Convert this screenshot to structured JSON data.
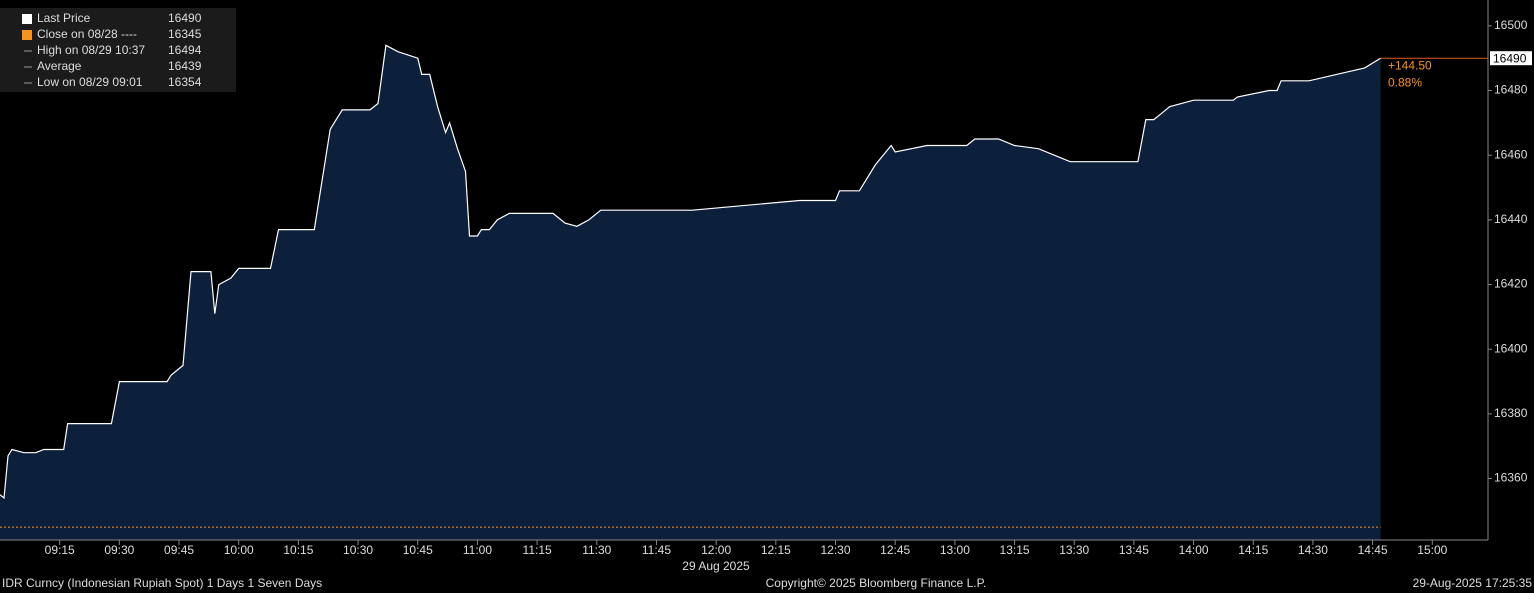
{
  "chart_data": {
    "type": "area",
    "series": [
      {
        "color": "#ffffff",
        "fill": "#0c1f3b",
        "x": [
          "09:00",
          "09:01",
          "09:02",
          "09:03",
          "09:06",
          "09:09",
          "09:11",
          "09:16",
          "09:17",
          "09:28",
          "09:30",
          "09:42",
          "09:43",
          "09:46",
          "09:48",
          "09:53",
          "09:54",
          "09:55",
          "09:58",
          "10:00",
          "10:08",
          "10:10",
          "10:19",
          "10:23",
          "10:26",
          "10:33",
          "10:35",
          "10:37",
          "10:40",
          "10:45",
          "10:46",
          "10:48",
          "10:50",
          "10:52",
          "10:53",
          "10:55",
          "10:57",
          "10:58",
          "11:00",
          "11:01",
          "11:03",
          "11:05",
          "11:08",
          "11:19",
          "11:22",
          "11:25",
          "11:28",
          "11:31",
          "11:54",
          "12:21",
          "12:30",
          "12:31",
          "12:36",
          "12:40",
          "12:44",
          "12:45",
          "12:53",
          "13:03",
          "13:05",
          "13:11",
          "13:15",
          "13:21",
          "13:29",
          "13:46",
          "13:48",
          "13:50",
          "13:52",
          "13:54",
          "14:00",
          "14:10",
          "14:11",
          "14:19",
          "14:21",
          "14:22",
          "14:29",
          "14:43",
          "14:47"
        ],
        "values": [
          16355,
          16354,
          16367,
          16369,
          16368,
          16368,
          16369,
          16369,
          16377,
          16377,
          16390,
          16390,
          16392,
          16395,
          16424,
          16424,
          16411,
          16420,
          16422,
          16425,
          16425,
          16437,
          16437,
          16468,
          16474,
          16474,
          16476,
          16494,
          16492,
          16490,
          16485,
          16485,
          16475,
          16467,
          16470,
          16462,
          16455,
          16435,
          16435,
          16437,
          16437,
          16440,
          16442,
          16442,
          16439,
          16438,
          16440,
          16443,
          16443,
          16446,
          16446,
          16449,
          16449,
          16457,
          16463,
          16461,
          16463,
          16463,
          16465,
          16465,
          16463,
          16462,
          16458,
          16458,
          16471,
          16471,
          16473,
          16475,
          16477,
          16477,
          16478,
          16480,
          16480,
          16483,
          16483,
          16487,
          16490
        ]
      }
    ],
    "xlim": [
      "09:00",
      "15:14"
    ],
    "xticks": [
      "09:15",
      "09:30",
      "09:45",
      "10:00",
      "10:15",
      "10:30",
      "10:45",
      "11:00",
      "11:15",
      "11:30",
      "11:45",
      "12:00",
      "12:15",
      "12:30",
      "12:45",
      "13:00",
      "13:15",
      "13:30",
      "13:45",
      "14:00",
      "14:15",
      "14:30",
      "14:45",
      "15:00"
    ],
    "x_label": "29 Aug 2025",
    "ylim": [
      16341,
      16508
    ],
    "yticks": [
      16360,
      16380,
      16400,
      16420,
      16440,
      16460,
      16480,
      16500
    ],
    "legend": [
      {
        "label": "Last Price",
        "value": 16490,
        "color": "#ffffff"
      },
      {
        "label": "Close on 08/28 ----",
        "value": 16345,
        "color": "#f7931e"
      },
      {
        "label": "High on 08/29 10:37",
        "value": 16494
      },
      {
        "label": "Average",
        "value": 16439
      },
      {
        "label": "Low on 08/29 09:01",
        "value": 16354
      }
    ],
    "change": "+144.50",
    "change_pct": "0.88%",
    "footer_left": "IDR Curncy (Indonesian Rupiah Spot) 1 Days 1 Seven Days",
    "footer_center": "Copyright© 2025 Bloomberg Finance L.P.",
    "footer_right": "29-Aug-2025 17:25:35"
  }
}
